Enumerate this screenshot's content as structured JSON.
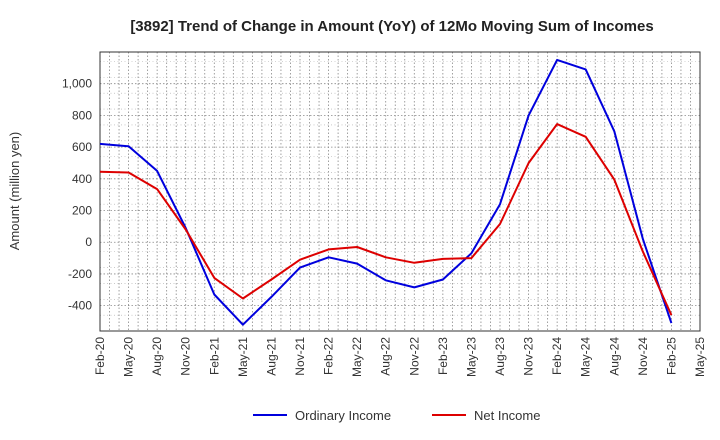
{
  "chart_data": {
    "type": "line",
    "title": "[3892]  Trend of Change in Amount (YoY) of 12Mo Moving Sum of Incomes",
    "xlabel": "",
    "ylabel": "Amount (million yen)",
    "categories": [
      "Feb-20",
      "May-20",
      "Aug-20",
      "Nov-20",
      "Feb-21",
      "May-21",
      "Aug-21",
      "Nov-21",
      "Feb-22",
      "May-22",
      "Aug-22",
      "Nov-22",
      "Feb-23",
      "May-23",
      "Aug-23",
      "Nov-23",
      "Feb-24",
      "May-24",
      "Aug-24",
      "Nov-24",
      "Feb-25",
      "May-25"
    ],
    "yticks": [
      -400,
      -200,
      0,
      200,
      400,
      600,
      800,
      1000
    ],
    "ytick_labels": [
      "-400",
      "-200",
      "0",
      "200",
      "400",
      "600",
      "800",
      "1,000"
    ],
    "ylim": [
      -560,
      1200
    ],
    "grid": true,
    "legend_position": "bottom",
    "series": [
      {
        "name": "Ordinary Income",
        "color": "#0000dd",
        "values": [
          620,
          605,
          450,
          90,
          -330,
          -520,
          -345,
          -160,
          -95,
          -135,
          -240,
          -285,
          -235,
          -70,
          240,
          800,
          1150,
          1090,
          700,
          20,
          -510,
          null
        ]
      },
      {
        "name": "Net Income",
        "color": "#dd0000",
        "values": [
          445,
          440,
          335,
          80,
          -225,
          -355,
          -235,
          -110,
          -45,
          -30,
          -95,
          -130,
          -105,
          -100,
          115,
          500,
          745,
          665,
          395,
          -60,
          -460,
          null
        ]
      }
    ]
  }
}
